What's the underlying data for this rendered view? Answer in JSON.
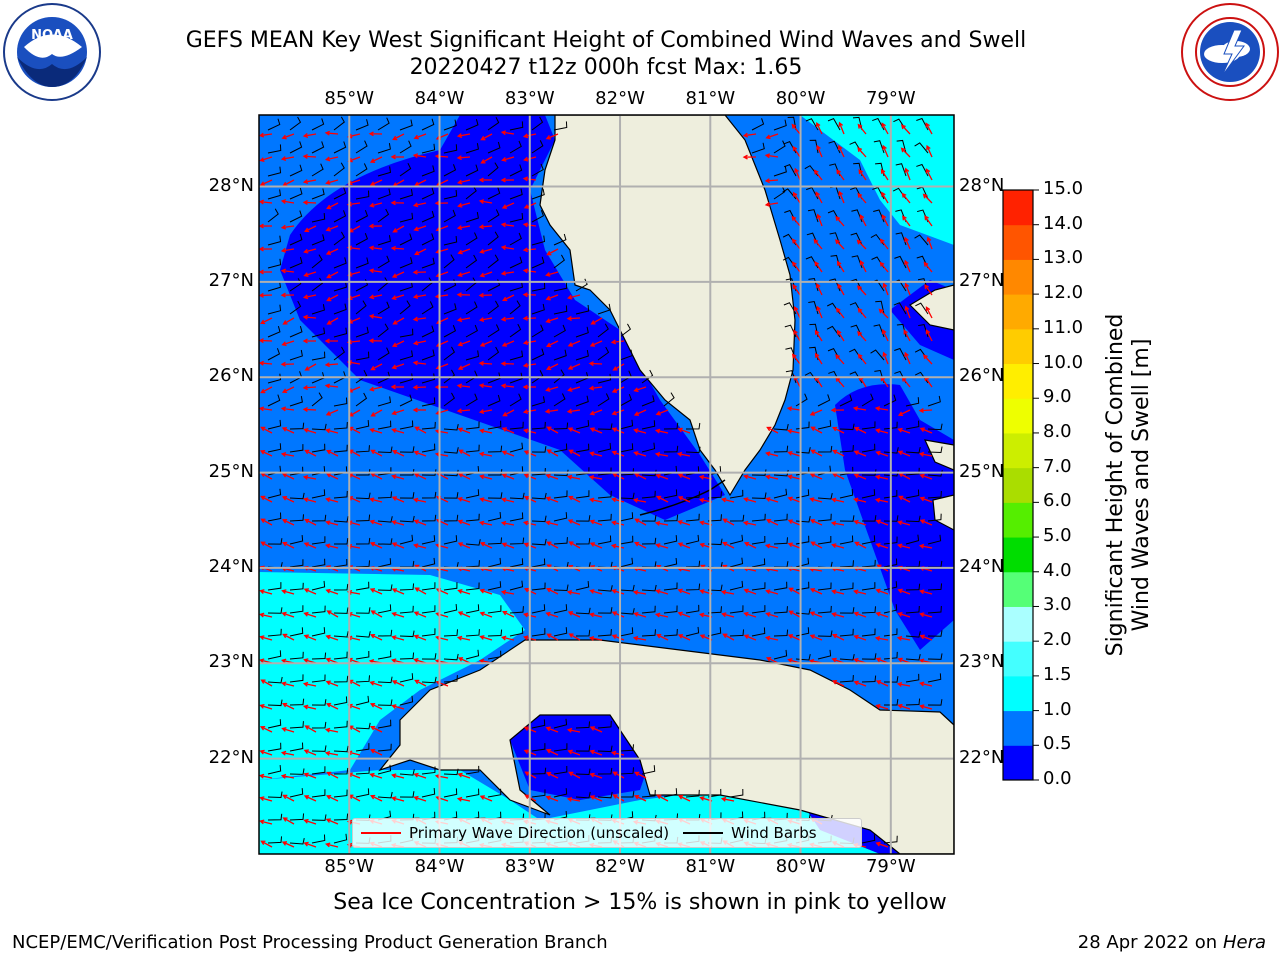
{
  "header": {
    "title_line1": "GEFS MEAN Key West Significant Height of Combined Wind Waves and Swell",
    "title_line2": "20220427 t12z 000h fcst   Max: 1.65"
  },
  "logos": {
    "left": {
      "name": "NOAA",
      "text": "NOAA",
      "ring_text": "NATIONAL OCEANIC AND ATMOSPHERIC ADMINISTRATION · U.S. DEPARTMENT OF COMMERCE"
    },
    "right": {
      "name": "National Weather Service",
      "ring_text": "NATIONAL WEATHER SERVICE"
    }
  },
  "map": {
    "region": "Key West / South Florida",
    "lon_range": [
      -86.0,
      -78.3
    ],
    "lat_range": [
      21.0,
      28.75
    ],
    "lon_ticks": [
      "85°W",
      "84°W",
      "83°W",
      "82°W",
      "81°W",
      "80°W",
      "79°W"
    ],
    "lat_ticks": [
      "22°N",
      "23°N",
      "24°N",
      "25°N",
      "26°N",
      "27°N",
      "28°N"
    ],
    "grid": true,
    "land_color": "#eeeedd",
    "barb_color": "#000000",
    "wave_arrow_color": "#ff0000"
  },
  "legend": {
    "items": [
      {
        "label": "Primary Wave Direction (unscaled)",
        "color": "#ff0000"
      },
      {
        "label": "Wind Barbs",
        "color": "#000000"
      }
    ],
    "placement": "bottom-center"
  },
  "colorbar": {
    "title_line1": "Significant Height of Combined",
    "title_line2": "Wind Waves and Swell [m]",
    "ticks": [
      "0.0",
      "0.5",
      "1.0",
      "1.5",
      "2.0",
      "3.0",
      "4.0",
      "5.0",
      "6.0",
      "7.0",
      "8.0",
      "9.0",
      "10.0",
      "11.0",
      "12.0",
      "13.0",
      "14.0",
      "15.0"
    ],
    "colors": [
      "#0000ff",
      "#0077ff",
      "#00ffff",
      "#44ffff",
      "#aaffff",
      "#55ff77",
      "#00dd00",
      "#55ee00",
      "#aadd00",
      "#ccee00",
      "#eeff00",
      "#ffee00",
      "#ffcc00",
      "#ffaa00",
      "#ff8800",
      "#ff5500",
      "#ff2200"
    ]
  },
  "subtitle": "Sea Ice Concentration > 15% is shown in pink to yellow",
  "footer": {
    "left": "NCEP/EMC/Verification Post Processing Product Generation Branch",
    "right_date": "28 Apr 2022 on ",
    "right_host": "Hera"
  }
}
